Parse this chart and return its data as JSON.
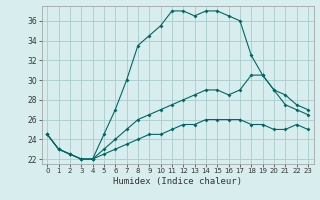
{
  "title": "",
  "xlabel": "Humidex (Indice chaleur)",
  "bg_color": "#d8eeee",
  "grid_color": "#aacccc",
  "line_color": "#006666",
  "xlim": [
    -0.5,
    23.5
  ],
  "ylim": [
    21.5,
    37.5
  ],
  "xticks": [
    0,
    1,
    2,
    3,
    4,
    5,
    6,
    7,
    8,
    9,
    10,
    11,
    12,
    13,
    14,
    15,
    16,
    17,
    18,
    19,
    20,
    21,
    22,
    23
  ],
  "yticks": [
    22,
    24,
    26,
    28,
    30,
    32,
    34,
    36
  ],
  "series_max": {
    "x": [
      0,
      1,
      2,
      3,
      4,
      5,
      6,
      7,
      8,
      9,
      10,
      11,
      12,
      13,
      14,
      15,
      16,
      17,
      18,
      19,
      20,
      21,
      22,
      23
    ],
    "y": [
      24.5,
      23.0,
      22.5,
      22.0,
      22.0,
      24.5,
      27.0,
      30.0,
      33.5,
      34.5,
      35.5,
      37.0,
      37.0,
      36.5,
      37.0,
      37.0,
      36.5,
      36.0,
      32.5,
      30.5,
      29.0,
      27.5,
      27.0,
      26.5
    ]
  },
  "series_mean": {
    "x": [
      0,
      1,
      2,
      3,
      4,
      5,
      6,
      7,
      8,
      9,
      10,
      11,
      12,
      13,
      14,
      15,
      16,
      17,
      18,
      19,
      20,
      21,
      22,
      23
    ],
    "y": [
      24.5,
      23.0,
      22.5,
      22.0,
      22.0,
      23.0,
      24.0,
      25.0,
      26.0,
      26.5,
      27.0,
      27.5,
      28.0,
      28.5,
      29.0,
      29.0,
      28.5,
      29.0,
      30.5,
      30.5,
      29.0,
      28.5,
      27.5,
      27.0
    ]
  },
  "series_min": {
    "x": [
      0,
      1,
      2,
      3,
      4,
      5,
      6,
      7,
      8,
      9,
      10,
      11,
      12,
      13,
      14,
      15,
      16,
      17,
      18,
      19,
      20,
      21,
      22,
      23
    ],
    "y": [
      24.5,
      23.0,
      22.5,
      22.0,
      22.0,
      22.5,
      23.0,
      23.5,
      24.0,
      24.5,
      24.5,
      25.0,
      25.5,
      25.5,
      26.0,
      26.0,
      26.0,
      26.0,
      25.5,
      25.5,
      25.0,
      25.0,
      25.5,
      25.0
    ]
  }
}
